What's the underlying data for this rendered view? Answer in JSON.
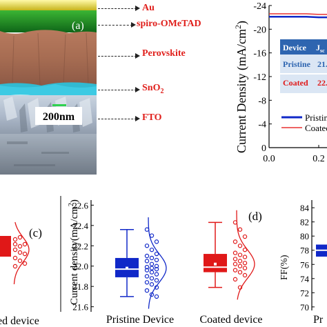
{
  "panel_a": {
    "tag": "(a)",
    "scale_bar": "200nm",
    "layers": [
      {
        "label": "Au",
        "color": "#e0201c"
      },
      {
        "label": "spiro-OMeTAD",
        "color": "#e0201c"
      },
      {
        "label": "Perovskite",
        "color": "#e0201c"
      },
      {
        "label": "SnO",
        "sub": "2",
        "color": "#e0201c"
      },
      {
        "label": "FTO",
        "color": "#e0201c"
      }
    ]
  },
  "panel_b": {
    "ylabel": "Current Density (mA/cm",
    "ylabel_sup": "2",
    "ylabel_close": ")",
    "yticks": [
      "-24",
      "-20",
      "-16",
      "-12",
      "-8",
      "-4",
      "0"
    ],
    "xticks": [
      "0.0",
      "0.2"
    ],
    "table": {
      "header": [
        "Device",
        "J"
      ],
      "header_sub": "sc",
      "rows": [
        [
          "Pristine",
          "21."
        ],
        [
          "Coated",
          "22."
        ]
      ]
    },
    "legend": [
      "Pristine",
      "Coated"
    ]
  },
  "panel_c": {
    "tag": "(c)",
    "xlabel": "ed device"
  },
  "panel_d": {
    "tag": "(d)",
    "ylabel": "Current density(mA/cm",
    "ylabel_sup": "2",
    "ylabel_close": ")",
    "yticks": [
      "22.6",
      "22.4",
      "22.2",
      "22.0",
      "21.8",
      "21.6"
    ],
    "xlabels": [
      "Pristine Device",
      "Coated device"
    ]
  },
  "panel_e": {
    "ylabel": "FF(%)",
    "yticks": [
      "84",
      "82",
      "80",
      "78",
      "76",
      "74",
      "72",
      "70"
    ],
    "xlabel": "Pr"
  },
  "chart_data": [
    {
      "type": "line",
      "ylabel": "Current Density (mA/cm2)",
      "xlim": [
        0.0,
        0.25
      ],
      "ylim": [
        -24,
        0
      ],
      "series": [
        {
          "name": "Pristine",
          "color": "#1028c8",
          "x": [
            0.0,
            0.05,
            0.1,
            0.15,
            0.2,
            0.25
          ],
          "y": [
            -22.1,
            -22.1,
            -22.1,
            -22.1,
            -22.0,
            -22.0
          ]
        },
        {
          "name": "Coated",
          "color": "#e83030",
          "x": [
            0.0,
            0.05,
            0.1,
            0.15,
            0.2,
            0.25
          ],
          "y": [
            -22.6,
            -22.6,
            -22.6,
            -22.6,
            -22.5,
            -22.5
          ]
        }
      ]
    },
    {
      "type": "box",
      "ylabel": "Current density(mA/cm2)",
      "ylim": [
        21.6,
        22.6
      ],
      "categories": [
        "Pristine Device",
        "Coated device"
      ],
      "series": [
        {
          "name": "Pristine Device",
          "color": "#1028c8",
          "whisker_low": 21.7,
          "q1": 21.89,
          "median": 21.97,
          "mean": 21.98,
          "q3": 22.08,
          "whisker_high": 22.36,
          "points": [
            22.36,
            22.3,
            22.24,
            22.2,
            22.16,
            22.12,
            22.1,
            22.08,
            22.06,
            22.05,
            22.02,
            22.0,
            21.99,
            21.98,
            21.97,
            21.96,
            21.94,
            21.92,
            21.9,
            21.88,
            21.86,
            21.84,
            21.82,
            21.79,
            21.76,
            21.72,
            21.7
          ]
        },
        {
          "name": "Coated device",
          "color": "#e01818",
          "whisker_low": 21.79,
          "q1": 21.94,
          "median": 21.99,
          "mean": 22.02,
          "q3": 22.12,
          "whisker_high": 22.43,
          "points": [
            22.43,
            22.36,
            22.29,
            22.24,
            22.2,
            22.16,
            22.13,
            22.11,
            22.09,
            22.07,
            22.05,
            22.03,
            22.02,
            22.0,
            21.98,
            21.96,
            21.94,
            21.91,
            21.87,
            21.79
          ]
        }
      ]
    },
    {
      "type": "box",
      "ylabel": "FF(%)",
      "ylim": [
        70,
        84
      ],
      "series": [
        {
          "name": "Pristine",
          "color": "#1028c8",
          "q1": 77.1,
          "median": 78.0,
          "q3": 78.8
        }
      ]
    }
  ]
}
